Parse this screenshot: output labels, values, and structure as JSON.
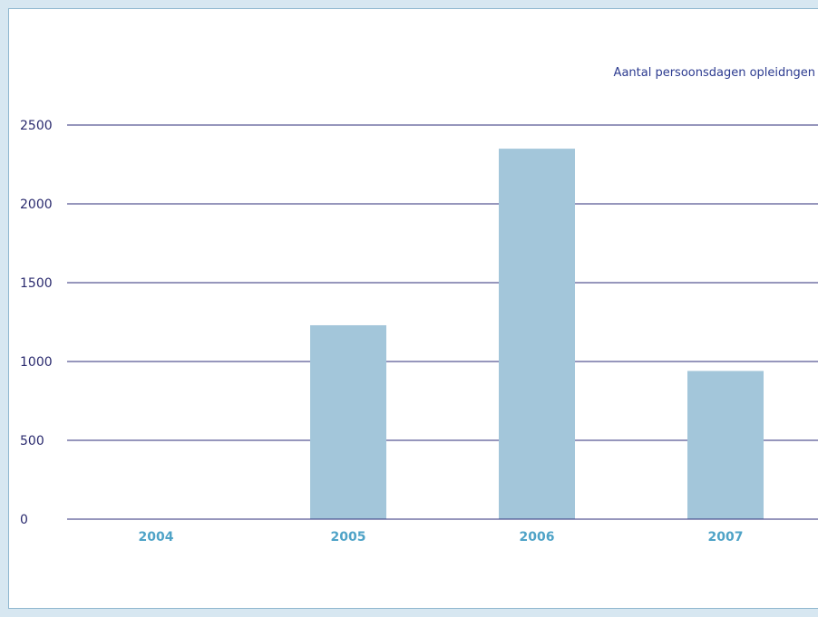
{
  "chart_data": {
    "type": "bar",
    "categories": [
      "2004",
      "2005",
      "2006",
      "2007"
    ],
    "series": [
      {
        "name": "Aantal persoonsdagen opleidngen",
        "values": [
          0,
          1230,
          2350,
          940
        ]
      }
    ],
    "y_ticks": [
      0,
      500,
      1000,
      1500,
      2000,
      2500
    ],
    "ylim": [
      0,
      2500
    ],
    "grid": true,
    "legend_position": "top-right",
    "colors": {
      "bar": "#a3c6da",
      "grid": "#2e2e7a",
      "tick_text": "#2a2a6e",
      "category_text": "#4fa3c7",
      "series_text": "#2b3a8f",
      "frame": "#d7e7f1"
    }
  }
}
